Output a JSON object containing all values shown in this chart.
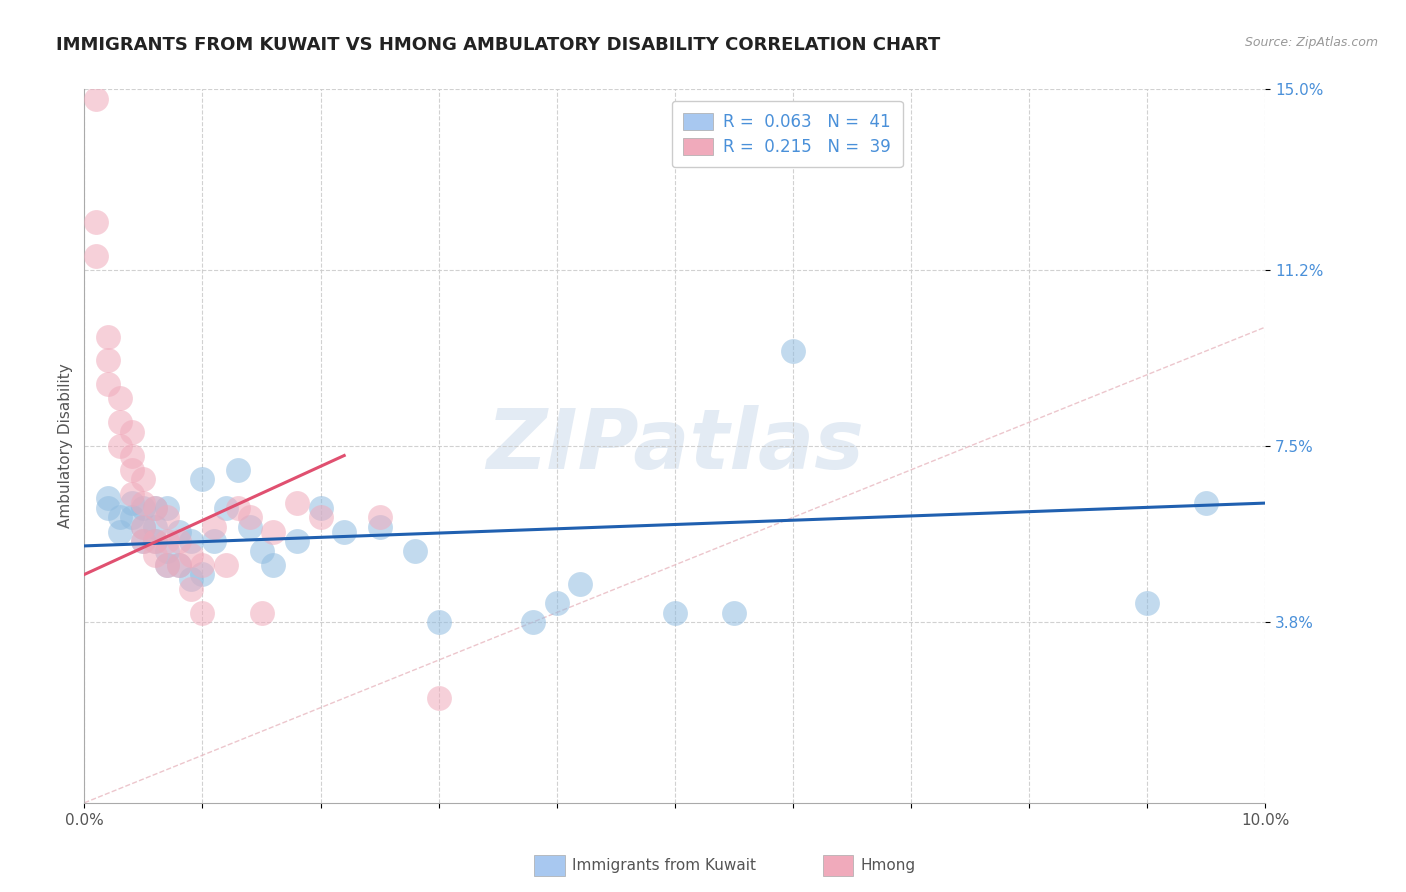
{
  "title": "IMMIGRANTS FROM KUWAIT VS HMONG AMBULATORY DISABILITY CORRELATION CHART",
  "source": "Source: ZipAtlas.com",
  "ylabel": "Ambulatory Disability",
  "xlim": [
    0.0,
    0.1
  ],
  "ylim": [
    0.0,
    0.15
  ],
  "yticks": [
    0.038,
    0.075,
    0.112,
    0.15
  ],
  "yticklabels": [
    "3.8%",
    "7.5%",
    "11.2%",
    "15.0%"
  ],
  "blue_color": "#90bce0",
  "pink_color": "#f0aabb",
  "blue_line_color": "#2060b0",
  "pink_line_color": "#e05070",
  "ref_line_color": "#e8b8c0",
  "watermark_text": "ZIPatlas",
  "watermark_color": "#c8d8ea",
  "title_fontsize": 13,
  "axis_label_fontsize": 11,
  "tick_fontsize": 11,
  "blue_scatter_x": [
    0.002,
    0.002,
    0.003,
    0.003,
    0.004,
    0.004,
    0.005,
    0.005,
    0.005,
    0.006,
    0.006,
    0.006,
    0.007,
    0.007,
    0.007,
    0.008,
    0.008,
    0.009,
    0.009,
    0.01,
    0.01,
    0.011,
    0.012,
    0.013,
    0.014,
    0.015,
    0.016,
    0.018,
    0.02,
    0.022,
    0.025,
    0.028,
    0.03,
    0.038,
    0.04,
    0.042,
    0.05,
    0.055,
    0.06,
    0.09,
    0.095
  ],
  "blue_scatter_y": [
    0.062,
    0.064,
    0.057,
    0.06,
    0.06,
    0.063,
    0.055,
    0.058,
    0.062,
    0.055,
    0.058,
    0.062,
    0.05,
    0.053,
    0.062,
    0.05,
    0.057,
    0.047,
    0.055,
    0.048,
    0.068,
    0.055,
    0.062,
    0.07,
    0.058,
    0.053,
    0.05,
    0.055,
    0.062,
    0.057,
    0.058,
    0.053,
    0.038,
    0.038,
    0.042,
    0.046,
    0.04,
    0.04,
    0.095,
    0.042,
    0.063
  ],
  "pink_scatter_x": [
    0.001,
    0.001,
    0.001,
    0.002,
    0.002,
    0.002,
    0.003,
    0.003,
    0.003,
    0.004,
    0.004,
    0.004,
    0.004,
    0.005,
    0.005,
    0.005,
    0.005,
    0.006,
    0.006,
    0.006,
    0.007,
    0.007,
    0.007,
    0.008,
    0.008,
    0.009,
    0.009,
    0.01,
    0.01,
    0.011,
    0.012,
    0.013,
    0.014,
    0.015,
    0.016,
    0.018,
    0.02,
    0.025,
    0.03
  ],
  "pink_scatter_y": [
    0.148,
    0.115,
    0.122,
    0.098,
    0.093,
    0.088,
    0.085,
    0.08,
    0.075,
    0.078,
    0.073,
    0.07,
    0.065,
    0.068,
    0.063,
    0.058,
    0.055,
    0.062,
    0.055,
    0.052,
    0.06,
    0.055,
    0.05,
    0.055,
    0.05,
    0.052,
    0.045,
    0.05,
    0.04,
    0.058,
    0.05,
    0.062,
    0.06,
    0.04,
    0.057,
    0.063,
    0.06,
    0.06,
    0.022
  ],
  "blue_trend_x": [
    0.0,
    0.1
  ],
  "blue_trend_y": [
    0.054,
    0.063
  ],
  "pink_trend_x": [
    0.0,
    0.022
  ],
  "pink_trend_y": [
    0.048,
    0.073
  ],
  "ref_line_x": [
    0.0,
    0.15
  ],
  "ref_line_y": [
    0.0,
    0.15
  ]
}
